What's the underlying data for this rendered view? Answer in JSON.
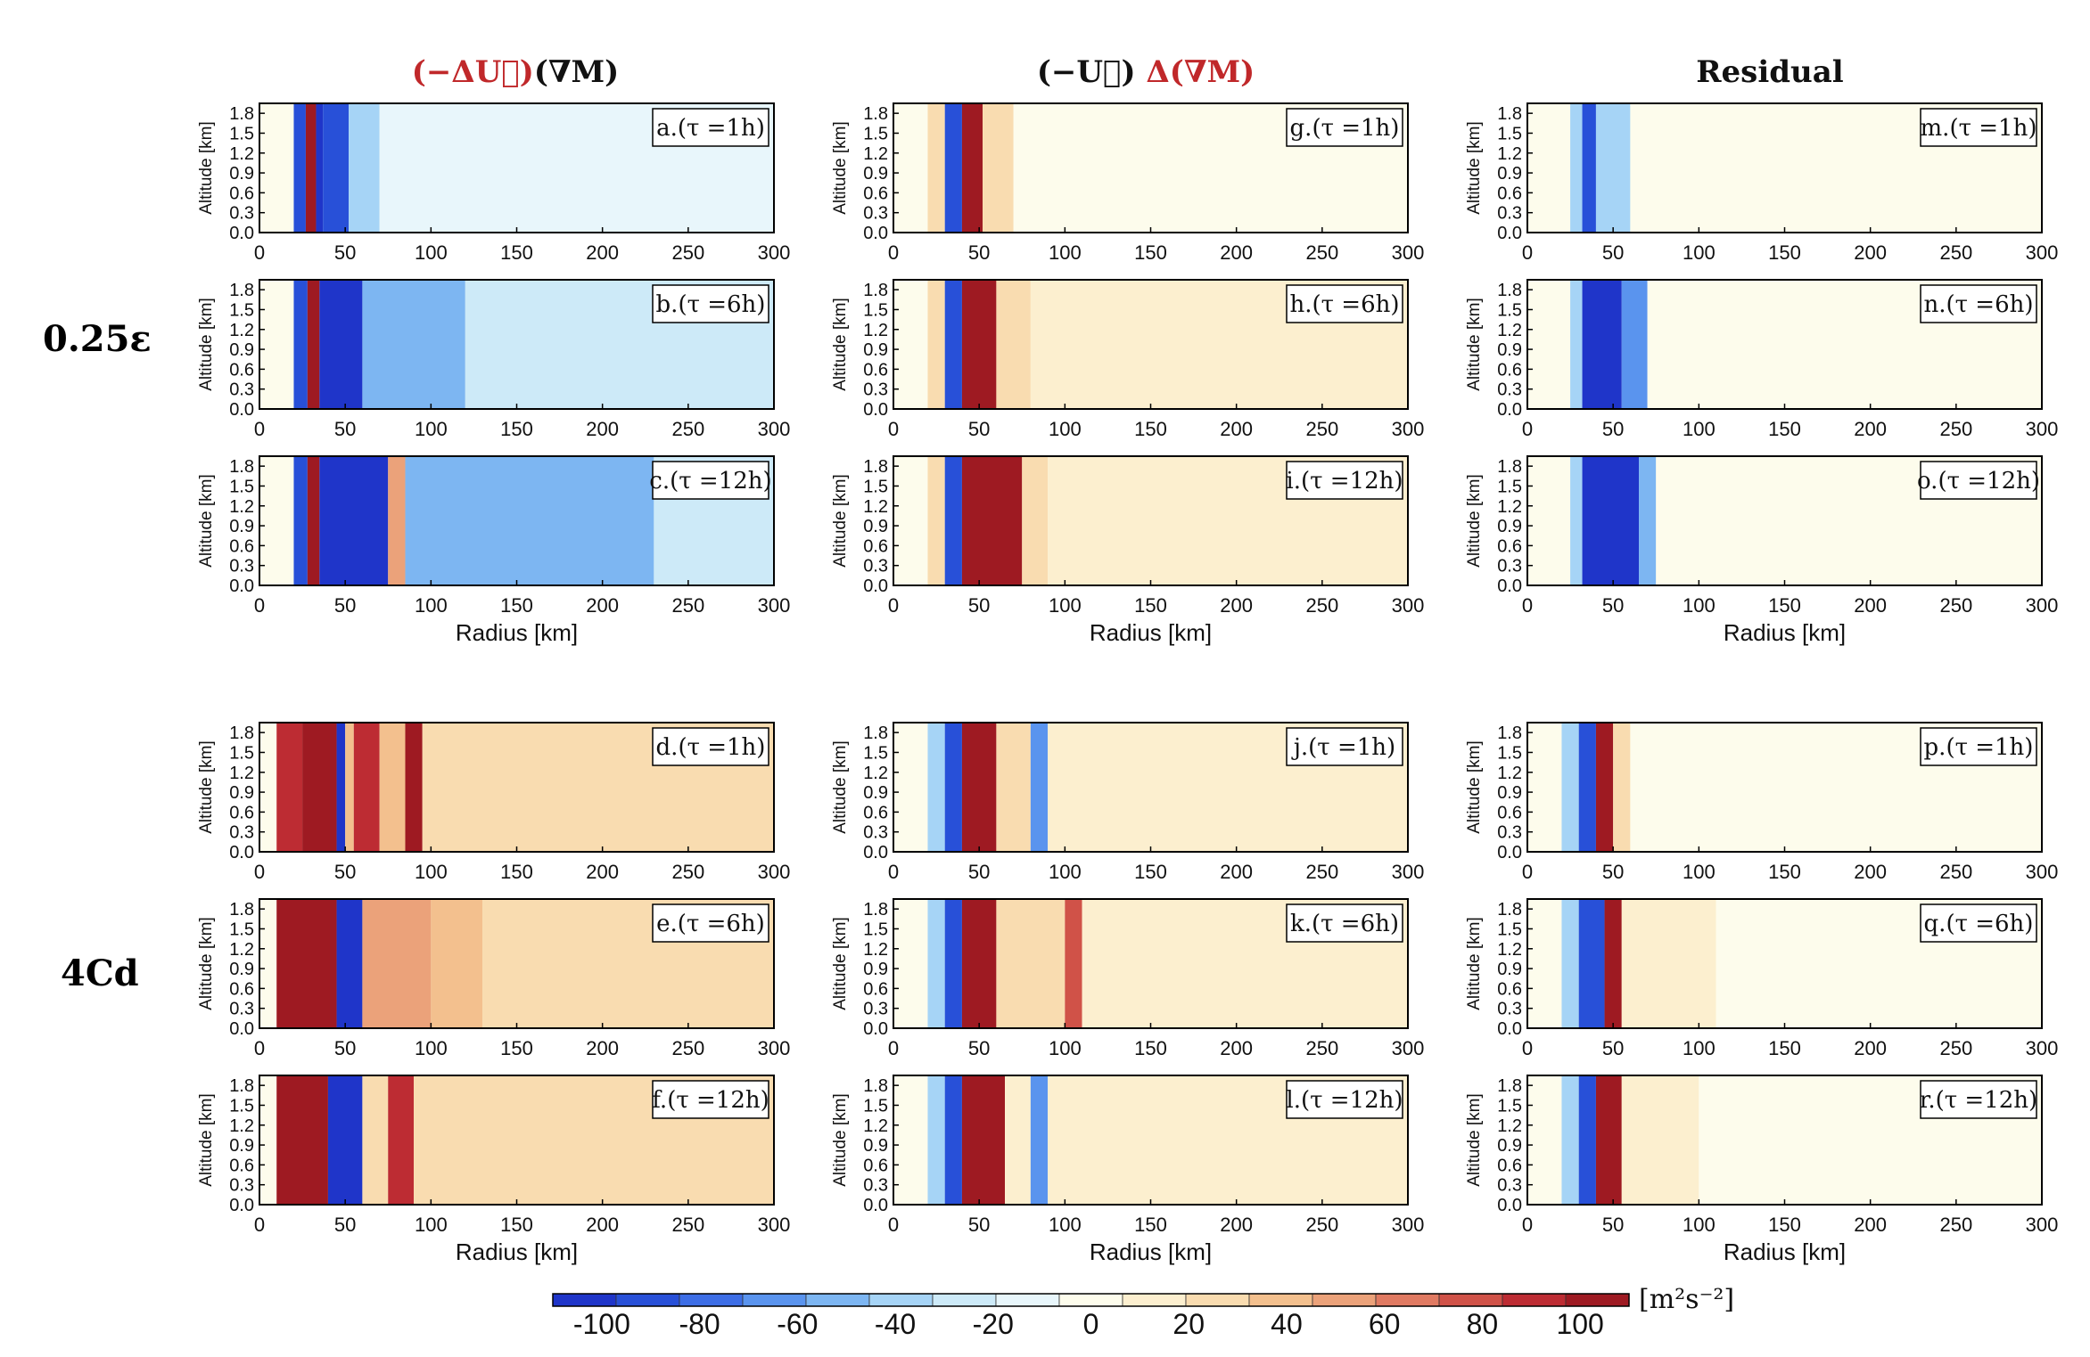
{
  "colors": {
    "palette": [
      "#1f35c9",
      "#2850d8",
      "#3d6ee6",
      "#5a94ee",
      "#7db6f2",
      "#a6d4f6",
      "#cdeaf8",
      "#e8f6fb",
      "#fdfcec",
      "#fcefcf",
      "#f9dcb0",
      "#f3c08e",
      "#eba27a",
      "#e07a62",
      "#d05248",
      "#bd2c33",
      "#9e1a22"
    ],
    "frame": "#000000",
    "red_text": "#c0282a"
  },
  "figure": {
    "row_groups": [
      "0.25ε",
      "4Cd"
    ],
    "columns": [
      {
        "title_parts": [
          {
            "t": "(−ΔU⃗)",
            "red": true
          },
          {
            "t": "(∇M)",
            "red": false
          }
        ]
      },
      {
        "title_parts": [
          {
            "t": "(−U⃗) ",
            "red": false
          },
          {
            "t": "Δ(∇M)",
            "red": true
          }
        ]
      },
      {
        "title_parts": [
          {
            "t": "Residual",
            "red": false
          }
        ]
      }
    ]
  },
  "chart_data": {
    "type": "heatmap",
    "xlabel": "Radius [km]",
    "ylabel": "Altitude [km]",
    "x_ticks": [
      0,
      50,
      100,
      150,
      200,
      250,
      300
    ],
    "y_ticks": [
      "0.0",
      "0.3",
      "0.6",
      "0.9",
      "1.2",
      "1.5",
      "1.8"
    ],
    "xlim": [
      0,
      300
    ],
    "ylim": [
      0,
      1.95
    ],
    "panels": [
      {
        "id": "a",
        "label": "a.(τ =1h)",
        "pattern": [
          [
            20,
            27,
            1
          ],
          [
            27,
            33,
            16
          ],
          [
            33,
            37,
            0
          ],
          [
            37,
            52,
            1
          ],
          [
            52,
            70,
            5
          ],
          [
            70,
            300,
            7
          ]
        ]
      },
      {
        "id": "g",
        "label": "g.(τ =1h)",
        "pattern": [
          [
            20,
            30,
            10
          ],
          [
            30,
            40,
            1
          ],
          [
            40,
            52,
            16
          ],
          [
            52,
            70,
            10
          ],
          [
            70,
            300,
            8
          ]
        ]
      },
      {
        "id": "m",
        "label": "m.(τ =1h)",
        "pattern": [
          [
            25,
            32,
            5
          ],
          [
            32,
            40,
            1
          ],
          [
            40,
            60,
            5
          ],
          [
            60,
            300,
            8
          ]
        ]
      },
      {
        "id": "b",
        "label": "b.(τ =6h)",
        "pattern": [
          [
            20,
            28,
            1
          ],
          [
            28,
            35,
            16
          ],
          [
            35,
            60,
            0
          ],
          [
            60,
            120,
            4
          ],
          [
            120,
            300,
            6
          ]
        ]
      },
      {
        "id": "h",
        "label": "h.(τ =6h)",
        "pattern": [
          [
            20,
            30,
            10
          ],
          [
            30,
            40,
            1
          ],
          [
            40,
            60,
            16
          ],
          [
            60,
            80,
            10
          ],
          [
            80,
            300,
            9
          ]
        ]
      },
      {
        "id": "n",
        "label": "n.(τ =6h)",
        "pattern": [
          [
            25,
            32,
            5
          ],
          [
            32,
            55,
            0
          ],
          [
            55,
            70,
            3
          ],
          [
            70,
            300,
            8
          ]
        ]
      },
      {
        "id": "c",
        "label": "c.(τ =12h)",
        "pattern": [
          [
            20,
            28,
            1
          ],
          [
            28,
            35,
            16
          ],
          [
            35,
            75,
            0
          ],
          [
            75,
            85,
            12
          ],
          [
            85,
            230,
            4
          ],
          [
            230,
            300,
            6
          ]
        ]
      },
      {
        "id": "i",
        "label": "i.(τ =12h)",
        "pattern": [
          [
            20,
            30,
            10
          ],
          [
            30,
            40,
            1
          ],
          [
            40,
            75,
            16
          ],
          [
            75,
            90,
            10
          ],
          [
            90,
            300,
            9
          ]
        ]
      },
      {
        "id": "o",
        "label": "o.(τ =12h)",
        "pattern": [
          [
            25,
            32,
            5
          ],
          [
            32,
            65,
            0
          ],
          [
            65,
            75,
            4
          ],
          [
            75,
            300,
            8
          ]
        ]
      },
      {
        "id": "d",
        "label": "d.(τ =1h)",
        "pattern": [
          [
            10,
            25,
            15
          ],
          [
            25,
            45,
            16
          ],
          [
            45,
            50,
            0
          ],
          [
            50,
            55,
            11
          ],
          [
            55,
            70,
            15
          ],
          [
            70,
            85,
            11
          ],
          [
            85,
            95,
            16
          ],
          [
            95,
            300,
            10
          ]
        ]
      },
      {
        "id": "j",
        "label": "j.(τ =1h)",
        "pattern": [
          [
            20,
            30,
            5
          ],
          [
            30,
            40,
            1
          ],
          [
            40,
            60,
            16
          ],
          [
            60,
            80,
            10
          ],
          [
            80,
            90,
            3
          ],
          [
            90,
            300,
            9
          ]
        ]
      },
      {
        "id": "p",
        "label": "p.(τ =1h)",
        "pattern": [
          [
            20,
            30,
            5
          ],
          [
            30,
            40,
            1
          ],
          [
            40,
            50,
            16
          ],
          [
            50,
            60,
            10
          ],
          [
            60,
            300,
            8
          ]
        ]
      },
      {
        "id": "e",
        "label": "e.(τ =6h)",
        "pattern": [
          [
            10,
            45,
            16
          ],
          [
            45,
            60,
            0
          ],
          [
            60,
            100,
            12
          ],
          [
            100,
            130,
            11
          ],
          [
            130,
            300,
            10
          ]
        ]
      },
      {
        "id": "k",
        "label": "k.(τ =6h)",
        "pattern": [
          [
            20,
            30,
            5
          ],
          [
            30,
            40,
            1
          ],
          [
            40,
            60,
            16
          ],
          [
            60,
            100,
            10
          ],
          [
            100,
            110,
            14
          ],
          [
            110,
            300,
            9
          ]
        ]
      },
      {
        "id": "q",
        "label": "q.(τ =6h)",
        "pattern": [
          [
            20,
            30,
            5
          ],
          [
            30,
            45,
            1
          ],
          [
            45,
            55,
            16
          ],
          [
            55,
            110,
            9
          ],
          [
            110,
            300,
            8
          ]
        ]
      },
      {
        "id": "f",
        "label": "f.(τ =12h)",
        "pattern": [
          [
            10,
            40,
            16
          ],
          [
            40,
            60,
            0
          ],
          [
            60,
            75,
            10
          ],
          [
            75,
            90,
            15
          ],
          [
            90,
            300,
            10
          ]
        ]
      },
      {
        "id": "l",
        "label": "l.(τ =12h)",
        "pattern": [
          [
            20,
            30,
            5
          ],
          [
            30,
            40,
            1
          ],
          [
            40,
            65,
            16
          ],
          [
            65,
            80,
            9
          ],
          [
            80,
            90,
            3
          ],
          [
            90,
            300,
            9
          ]
        ]
      },
      {
        "id": "r",
        "label": "r.(τ =12h)",
        "pattern": [
          [
            20,
            30,
            5
          ],
          [
            30,
            40,
            1
          ],
          [
            40,
            55,
            16
          ],
          [
            55,
            100,
            9
          ],
          [
            100,
            300,
            8
          ]
        ]
      }
    ],
    "colorbar": {
      "ticks": [
        "-100",
        "-80",
        "-60",
        "-40",
        "-20",
        "0",
        "20",
        "40",
        "60",
        "80",
        "100"
      ],
      "unit": "[m²s⁻²]",
      "range": [
        -110,
        110
      ],
      "step": 10
    }
  }
}
